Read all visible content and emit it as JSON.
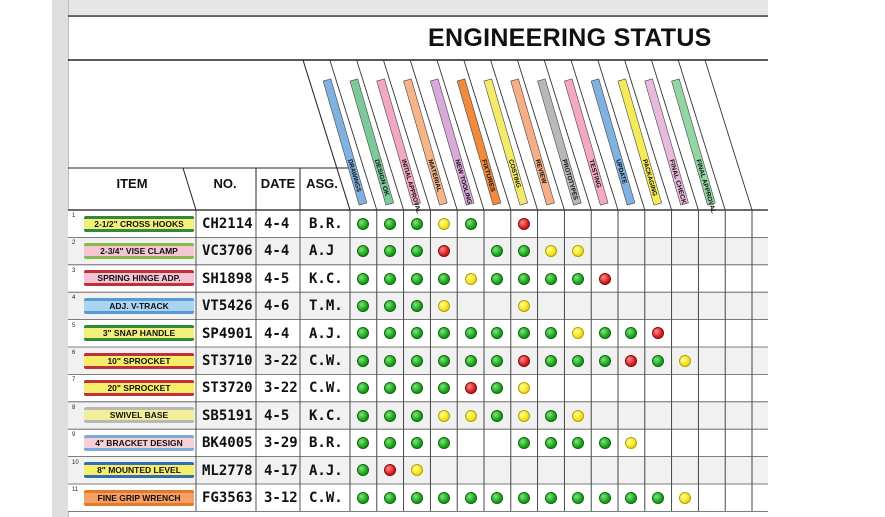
{
  "title": "ENGINEERING STATUS",
  "headers": {
    "item": "ITEM",
    "no": "NO.",
    "date": "DATE",
    "asg": "ASG."
  },
  "stages": [
    {
      "name": "DRAWINGS",
      "color": "#7fb2e0"
    },
    {
      "name": "DESIGN OK",
      "color": "#7ec99a"
    },
    {
      "name": "INITIAL APPROVAL",
      "color": "#f2a8c4"
    },
    {
      "name": "MATERIAL",
      "color": "#f6b588"
    },
    {
      "name": "NEW TOOLING",
      "color": "#d9a9d9"
    },
    {
      "name": "FIXTURES",
      "color": "#f08a3c"
    },
    {
      "name": "COSTING",
      "color": "#f3ea6a"
    },
    {
      "name": "REVIEW",
      "color": "#f6ae86"
    },
    {
      "name": "PROTOTYPES",
      "color": "#b8b8b8"
    },
    {
      "name": "TESTING",
      "color": "#f4a8c4"
    },
    {
      "name": "UPDATE",
      "color": "#7fb2e0"
    },
    {
      "name": "PACKAGING",
      "color": "#f5ea5a"
    },
    {
      "name": "FINAL CHECK",
      "color": "#e7b9dd"
    },
    {
      "name": "FINAL APPROVAL",
      "color": "#93d6a4"
    }
  ],
  "rows": [
    {
      "num": "1",
      "item": "2-1/2\" CROSS HOOKS",
      "strip": "#f4ef7a",
      "border": "#2e8b3a",
      "no": "CH2114",
      "date": "4-4",
      "asg": "B.R.",
      "dots": [
        "g",
        "g",
        "g",
        "y",
        "g",
        "",
        "r",
        "",
        "",
        "",
        "",
        "",
        "",
        ""
      ]
    },
    {
      "num": "2",
      "item": "2-3/4\" VISE CLAMP",
      "strip": "#f6c4d2",
      "border": "#8ab84a",
      "no": "VC3706",
      "date": "4-4",
      "asg": "A.J",
      "dots": [
        "g",
        "g",
        "g",
        "r",
        "",
        "g",
        "g",
        "y",
        "y",
        "",
        "",
        "",
        "",
        ""
      ]
    },
    {
      "num": "3",
      "item": "SPRING HINGE ADP.",
      "strip": "#f6c4d2",
      "border": "#c0303a",
      "no": "SH1898",
      "date": "4-5",
      "asg": "K.C.",
      "dots": [
        "g",
        "g",
        "g",
        "g",
        "y",
        "g",
        "g",
        "g",
        "g",
        "r",
        "",
        "",
        "",
        ""
      ]
    },
    {
      "num": "4",
      "item": "ADJ. V-TRACK",
      "strip": "#a9d4f2",
      "border": "#5a9ad0",
      "no": "VT5426",
      "date": "4-6",
      "asg": "T.M.",
      "dots": [
        "g",
        "g",
        "g",
        "y",
        "",
        "",
        "y",
        "",
        "",
        "",
        "",
        "",
        "",
        ""
      ]
    },
    {
      "num": "5",
      "item": "3\" SNAP HANDLE",
      "strip": "#f4ef7a",
      "border": "#2e8b3a",
      "no": "SP4901",
      "date": "4-4",
      "asg": "A.J.",
      "dots": [
        "g",
        "g",
        "g",
        "g",
        "g",
        "g",
        "g",
        "g",
        "y",
        "g",
        "g",
        "r",
        "",
        ""
      ]
    },
    {
      "num": "6",
      "item": "10\" SPROCKET",
      "strip": "#f6ee6a",
      "border": "#c0303a",
      "no": "ST3710",
      "date": "3-22",
      "asg": "C.W.",
      "dots": [
        "g",
        "g",
        "g",
        "g",
        "g",
        "g",
        "r",
        "g",
        "g",
        "g",
        "r",
        "g",
        "y",
        ""
      ]
    },
    {
      "num": "7",
      "item": "20\" SPROCKET",
      "strip": "#f6ee6a",
      "border": "#c0303a",
      "no": "ST3720",
      "date": "3-22",
      "asg": "C.W.",
      "dots": [
        "g",
        "g",
        "g",
        "g",
        "r",
        "g",
        "y",
        "",
        "",
        "",
        "",
        "",
        "",
        ""
      ]
    },
    {
      "num": "8",
      "item": "SWIVEL BASE",
      "strip": "#f2ee9a",
      "border": "#b8b8b8",
      "no": "SB5191",
      "date": "4-5",
      "asg": "K.C.",
      "dots": [
        "g",
        "g",
        "g",
        "y",
        "y",
        "g",
        "y",
        "g",
        "y",
        "",
        "",
        "",
        "",
        ""
      ]
    },
    {
      "num": "9",
      "item": "4\" BRACKET DESIGN",
      "strip": "#f5d0d8",
      "border": "#7fa9d6",
      "no": "BK4005",
      "date": "3-29",
      "asg": "B.R.",
      "dots": [
        "g",
        "g",
        "g",
        "g",
        "",
        "",
        "g",
        "g",
        "g",
        "g",
        "y",
        "",
        "",
        ""
      ]
    },
    {
      "num": "10",
      "item": "8\" MOUNTED LEVEL",
      "strip": "#f6ee6a",
      "border": "#2e6fb8",
      "no": "ML2778",
      "date": "4-17",
      "asg": "A.J.",
      "dots": [
        "g",
        "r",
        "y",
        "",
        "",
        "",
        "",
        "",
        "",
        "",
        "",
        "",
        "",
        ""
      ]
    },
    {
      "num": "11",
      "item": "FINE GRIP WRENCH",
      "strip": "#f5a064",
      "border": "#e07b2a",
      "no": "FG3563",
      "date": "3-12",
      "asg": "C.W.",
      "dots": [
        "g",
        "g",
        "g",
        "g",
        "g",
        "g",
        "g",
        "g",
        "g",
        "g",
        "g",
        "g",
        "y",
        ""
      ]
    }
  ]
}
